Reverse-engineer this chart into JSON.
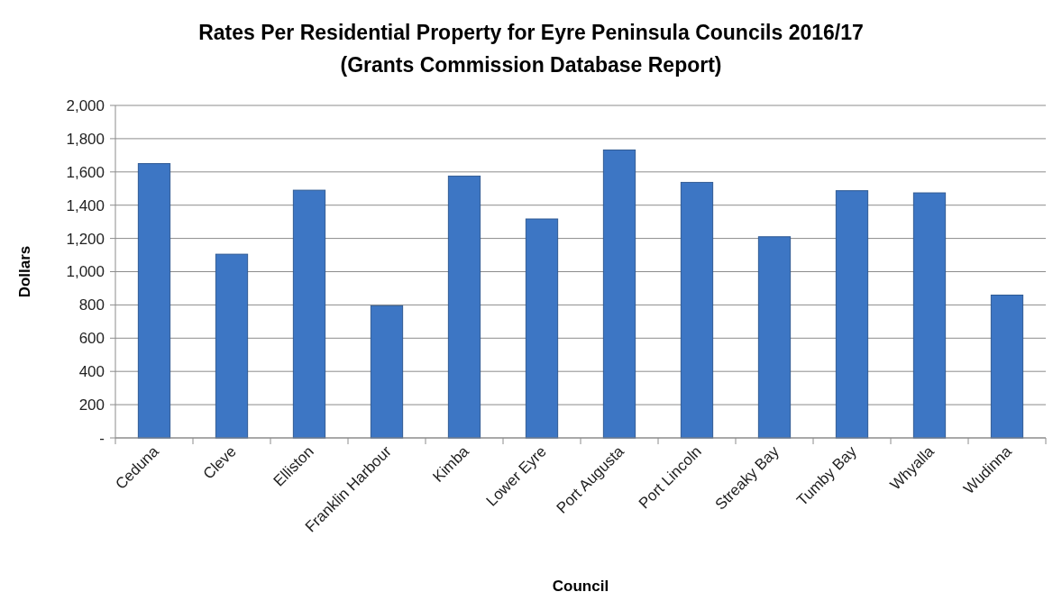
{
  "chart_data": {
    "type": "bar",
    "title": "Rates Per Residential Property for Eyre Peninsula Councils 2016/17",
    "subtitle": "(Grants Commission Database Report)",
    "xlabel": "Council",
    "ylabel": "Dollars",
    "categories": [
      "Ceduna",
      "Cleve",
      "Elliston",
      "Franklin Harbour",
      "Kimba",
      "Lower Eyre",
      "Port Augusta",
      "Port Lincoln",
      "Streaky Bay",
      "Tumby Bay",
      "Whyalla",
      "Wudinna"
    ],
    "values": [
      1650,
      1105,
      1490,
      795,
      1575,
      1317,
      1732,
      1537,
      1210,
      1487,
      1474,
      859
    ],
    "color": "#3d76c4",
    "ylim": [
      0,
      2000
    ],
    "yticks": [
      {
        "value": 0,
        "label": "-"
      },
      {
        "value": 200,
        "label": "200"
      },
      {
        "value": 400,
        "label": "400"
      },
      {
        "value": 600,
        "label": "600"
      },
      {
        "value": 800,
        "label": "800"
      },
      {
        "value": 1000,
        "label": "1,000"
      },
      {
        "value": 1200,
        "label": "1,200"
      },
      {
        "value": 1400,
        "label": "1,400"
      },
      {
        "value": 1600,
        "label": "1,600"
      },
      {
        "value": 1800,
        "label": "1,800"
      },
      {
        "value": 2000,
        "label": "2,000"
      }
    ],
    "grid": "y"
  }
}
